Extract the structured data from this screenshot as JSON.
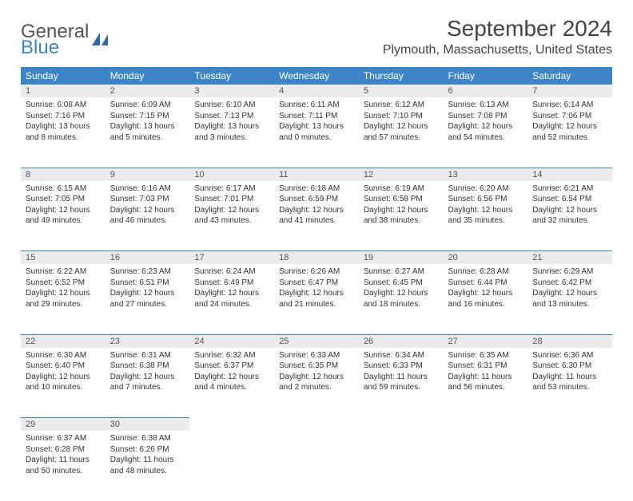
{
  "brand": {
    "name1": "General",
    "name2": "Blue",
    "icon_color": "#2d6aa3"
  },
  "title": "September 2024",
  "location": "Plymouth, Massachusetts, United States",
  "header_bg": "#3d85c6",
  "daynum_bg": "#ebebeb",
  "weekdays": [
    "Sunday",
    "Monday",
    "Tuesday",
    "Wednesday",
    "Thursday",
    "Friday",
    "Saturday"
  ],
  "weeks": [
    [
      {
        "n": "1",
        "sr": "Sunrise: 6:08 AM",
        "ss": "Sunset: 7:16 PM",
        "dl": "Daylight: 13 hours and 8 minutes."
      },
      {
        "n": "2",
        "sr": "Sunrise: 6:09 AM",
        "ss": "Sunset: 7:15 PM",
        "dl": "Daylight: 13 hours and 5 minutes."
      },
      {
        "n": "3",
        "sr": "Sunrise: 6:10 AM",
        "ss": "Sunset: 7:13 PM",
        "dl": "Daylight: 13 hours and 3 minutes."
      },
      {
        "n": "4",
        "sr": "Sunrise: 6:11 AM",
        "ss": "Sunset: 7:11 PM",
        "dl": "Daylight: 13 hours and 0 minutes."
      },
      {
        "n": "5",
        "sr": "Sunrise: 6:12 AM",
        "ss": "Sunset: 7:10 PM",
        "dl": "Daylight: 12 hours and 57 minutes."
      },
      {
        "n": "6",
        "sr": "Sunrise: 6:13 AM",
        "ss": "Sunset: 7:08 PM",
        "dl": "Daylight: 12 hours and 54 minutes."
      },
      {
        "n": "7",
        "sr": "Sunrise: 6:14 AM",
        "ss": "Sunset: 7:06 PM",
        "dl": "Daylight: 12 hours and 52 minutes."
      }
    ],
    [
      {
        "n": "8",
        "sr": "Sunrise: 6:15 AM",
        "ss": "Sunset: 7:05 PM",
        "dl": "Daylight: 12 hours and 49 minutes."
      },
      {
        "n": "9",
        "sr": "Sunrise: 6:16 AM",
        "ss": "Sunset: 7:03 PM",
        "dl": "Daylight: 12 hours and 46 minutes."
      },
      {
        "n": "10",
        "sr": "Sunrise: 6:17 AM",
        "ss": "Sunset: 7:01 PM",
        "dl": "Daylight: 12 hours and 43 minutes."
      },
      {
        "n": "11",
        "sr": "Sunrise: 6:18 AM",
        "ss": "Sunset: 6:59 PM",
        "dl": "Daylight: 12 hours and 41 minutes."
      },
      {
        "n": "12",
        "sr": "Sunrise: 6:19 AM",
        "ss": "Sunset: 6:58 PM",
        "dl": "Daylight: 12 hours and 38 minutes."
      },
      {
        "n": "13",
        "sr": "Sunrise: 6:20 AM",
        "ss": "Sunset: 6:56 PM",
        "dl": "Daylight: 12 hours and 35 minutes."
      },
      {
        "n": "14",
        "sr": "Sunrise: 6:21 AM",
        "ss": "Sunset: 6:54 PM",
        "dl": "Daylight: 12 hours and 32 minutes."
      }
    ],
    [
      {
        "n": "15",
        "sr": "Sunrise: 6:22 AM",
        "ss": "Sunset: 6:52 PM",
        "dl": "Daylight: 12 hours and 29 minutes."
      },
      {
        "n": "16",
        "sr": "Sunrise: 6:23 AM",
        "ss": "Sunset: 6:51 PM",
        "dl": "Daylight: 12 hours and 27 minutes."
      },
      {
        "n": "17",
        "sr": "Sunrise: 6:24 AM",
        "ss": "Sunset: 6:49 PM",
        "dl": "Daylight: 12 hours and 24 minutes."
      },
      {
        "n": "18",
        "sr": "Sunrise: 6:26 AM",
        "ss": "Sunset: 6:47 PM",
        "dl": "Daylight: 12 hours and 21 minutes."
      },
      {
        "n": "19",
        "sr": "Sunrise: 6:27 AM",
        "ss": "Sunset: 6:45 PM",
        "dl": "Daylight: 12 hours and 18 minutes."
      },
      {
        "n": "20",
        "sr": "Sunrise: 6:28 AM",
        "ss": "Sunset: 6:44 PM",
        "dl": "Daylight: 12 hours and 16 minutes."
      },
      {
        "n": "21",
        "sr": "Sunrise: 6:29 AM",
        "ss": "Sunset: 6:42 PM",
        "dl": "Daylight: 12 hours and 13 minutes."
      }
    ],
    [
      {
        "n": "22",
        "sr": "Sunrise: 6:30 AM",
        "ss": "Sunset: 6:40 PM",
        "dl": "Daylight: 12 hours and 10 minutes."
      },
      {
        "n": "23",
        "sr": "Sunrise: 6:31 AM",
        "ss": "Sunset: 6:38 PM",
        "dl": "Daylight: 12 hours and 7 minutes."
      },
      {
        "n": "24",
        "sr": "Sunrise: 6:32 AM",
        "ss": "Sunset: 6:37 PM",
        "dl": "Daylight: 12 hours and 4 minutes."
      },
      {
        "n": "25",
        "sr": "Sunrise: 6:33 AM",
        "ss": "Sunset: 6:35 PM",
        "dl": "Daylight: 12 hours and 2 minutes."
      },
      {
        "n": "26",
        "sr": "Sunrise: 6:34 AM",
        "ss": "Sunset: 6:33 PM",
        "dl": "Daylight: 11 hours and 59 minutes."
      },
      {
        "n": "27",
        "sr": "Sunrise: 6:35 AM",
        "ss": "Sunset: 6:31 PM",
        "dl": "Daylight: 11 hours and 56 minutes."
      },
      {
        "n": "28",
        "sr": "Sunrise: 6:36 AM",
        "ss": "Sunset: 6:30 PM",
        "dl": "Daylight: 11 hours and 53 minutes."
      }
    ],
    [
      {
        "n": "29",
        "sr": "Sunrise: 6:37 AM",
        "ss": "Sunset: 6:28 PM",
        "dl": "Daylight: 11 hours and 50 minutes."
      },
      {
        "n": "30",
        "sr": "Sunrise: 6:38 AM",
        "ss": "Sunset: 6:26 PM",
        "dl": "Daylight: 11 hours and 48 minutes."
      },
      null,
      null,
      null,
      null,
      null
    ]
  ]
}
